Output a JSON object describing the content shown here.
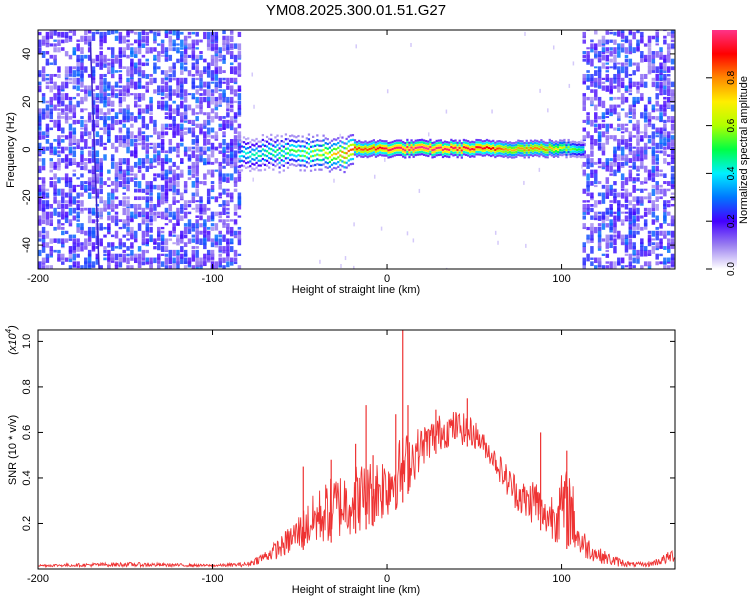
{
  "title": "YM08.2025.300.01.51.G27",
  "chart_data": [
    {
      "type": "heatmap",
      "name": "spectrogram",
      "title": "YM08.2025.300.01.51.G27",
      "xlabel": "Height of straight line (km)",
      "ylabel": "Frequency (Hz)",
      "xlim": [
        -200,
        165
      ],
      "ylim": [
        -50,
        50
      ],
      "x_ticks": [
        -200,
        -100,
        0,
        100
      ],
      "x_tick_labels": [
        "-200",
        "-100",
        "0",
        "100"
      ],
      "y_ticks": [
        -40,
        -20,
        0,
        20,
        40
      ],
      "y_tick_labels": [
        "-40",
        "-20",
        "0",
        "20",
        "40"
      ],
      "noise_regions_km": [
        [
          -200,
          -85
        ],
        [
          112,
          165
        ]
      ],
      "signal_track": {
        "frequency_hz": 0,
        "x_range_km": [
          -85,
          112
        ],
        "amplitude_profile": {
          "x": [
            -85,
            -75,
            -60,
            -50,
            -40,
            -30,
            -20,
            -10,
            0,
            20,
            40,
            60,
            70,
            80,
            90,
            100,
            112
          ],
          "value": [
            0.4,
            0.45,
            0.5,
            0.55,
            0.6,
            0.75,
            0.85,
            0.85,
            0.95,
            1.0,
            0.95,
            0.9,
            0.75,
            0.8,
            0.8,
            0.65,
            0.45
          ]
        }
      },
      "colorbar": {
        "label": "Normalized spectral amplitude",
        "range": [
          0,
          1
        ],
        "ticks": [
          0.0,
          0.2,
          0.4,
          0.6,
          0.8
        ],
        "tick_labels": [
          "0.0",
          "0.2",
          "0.4",
          "0.6",
          "0.8"
        ],
        "colors": [
          "#ffffff",
          "#9a7ff0",
          "#4400ff",
          "#0077ff",
          "#00f0ff",
          "#00ff44",
          "#b0ff00",
          "#ffee00",
          "#ff8800",
          "#ff0000",
          "#ff3388"
        ]
      }
    },
    {
      "type": "line",
      "name": "snr",
      "xlabel": "Height of straight line (km)",
      "ylabel": "SNR (10 * v/v)",
      "y_multiplier_label": "(x10",
      "y_multiplier_exp": "4",
      "y_multiplier_close": ")",
      "xlim": [
        -200,
        165
      ],
      "ylim": [
        0,
        1.05
      ],
      "x_ticks": [
        -200,
        -100,
        0,
        100
      ],
      "x_tick_labels": [
        "-200",
        "-100",
        "0",
        "100"
      ],
      "y_ticks": [
        0.2,
        0.4,
        0.6,
        0.8,
        1.0
      ],
      "y_tick_labels": [
        "0.2",
        "0.4",
        "0.6",
        "0.8",
        "1.0"
      ],
      "line_color": "#ee3333",
      "envelope": {
        "x": [
          -200,
          -150,
          -100,
          -80,
          -70,
          -60,
          -50,
          -40,
          -30,
          -20,
          -10,
          0,
          5,
          10,
          20,
          30,
          40,
          50,
          55,
          60,
          70,
          80,
          85,
          90,
          100,
          105,
          110,
          120,
          130,
          140,
          150,
          160,
          165
        ],
        "low": [
          0.01,
          0.01,
          0.01,
          0.01,
          0.03,
          0.05,
          0.08,
          0.1,
          0.12,
          0.15,
          0.18,
          0.22,
          0.26,
          0.3,
          0.45,
          0.52,
          0.55,
          0.53,
          0.5,
          0.45,
          0.3,
          0.2,
          0.2,
          0.15,
          0.1,
          0.08,
          0.05,
          0.03,
          0.01,
          0.01,
          0.01,
          0.02,
          0.03
        ],
        "high": [
          0.02,
          0.03,
          0.02,
          0.03,
          0.08,
          0.15,
          0.25,
          0.35,
          0.42,
          0.46,
          0.48,
          0.52,
          0.56,
          0.6,
          0.63,
          0.68,
          0.7,
          0.66,
          0.6,
          0.55,
          0.45,
          0.38,
          0.42,
          0.3,
          0.42,
          0.46,
          0.2,
          0.1,
          0.06,
          0.03,
          0.03,
          0.07,
          0.1
        ]
      },
      "spikes": [
        {
          "x": -48,
          "y": 0.45
        },
        {
          "x": -32,
          "y": 0.48
        },
        {
          "x": -18,
          "y": 0.55
        },
        {
          "x": -12,
          "y": 0.72
        },
        {
          "x": -8,
          "y": 0.5
        },
        {
          "x": 5,
          "y": 0.68
        },
        {
          "x": 9,
          "y": 1.05
        },
        {
          "x": 12,
          "y": 0.72
        },
        {
          "x": 28,
          "y": 0.7
        },
        {
          "x": 46,
          "y": 0.75
        },
        {
          "x": 88,
          "y": 0.6
        },
        {
          "x": 103,
          "y": 0.52
        }
      ]
    }
  ]
}
